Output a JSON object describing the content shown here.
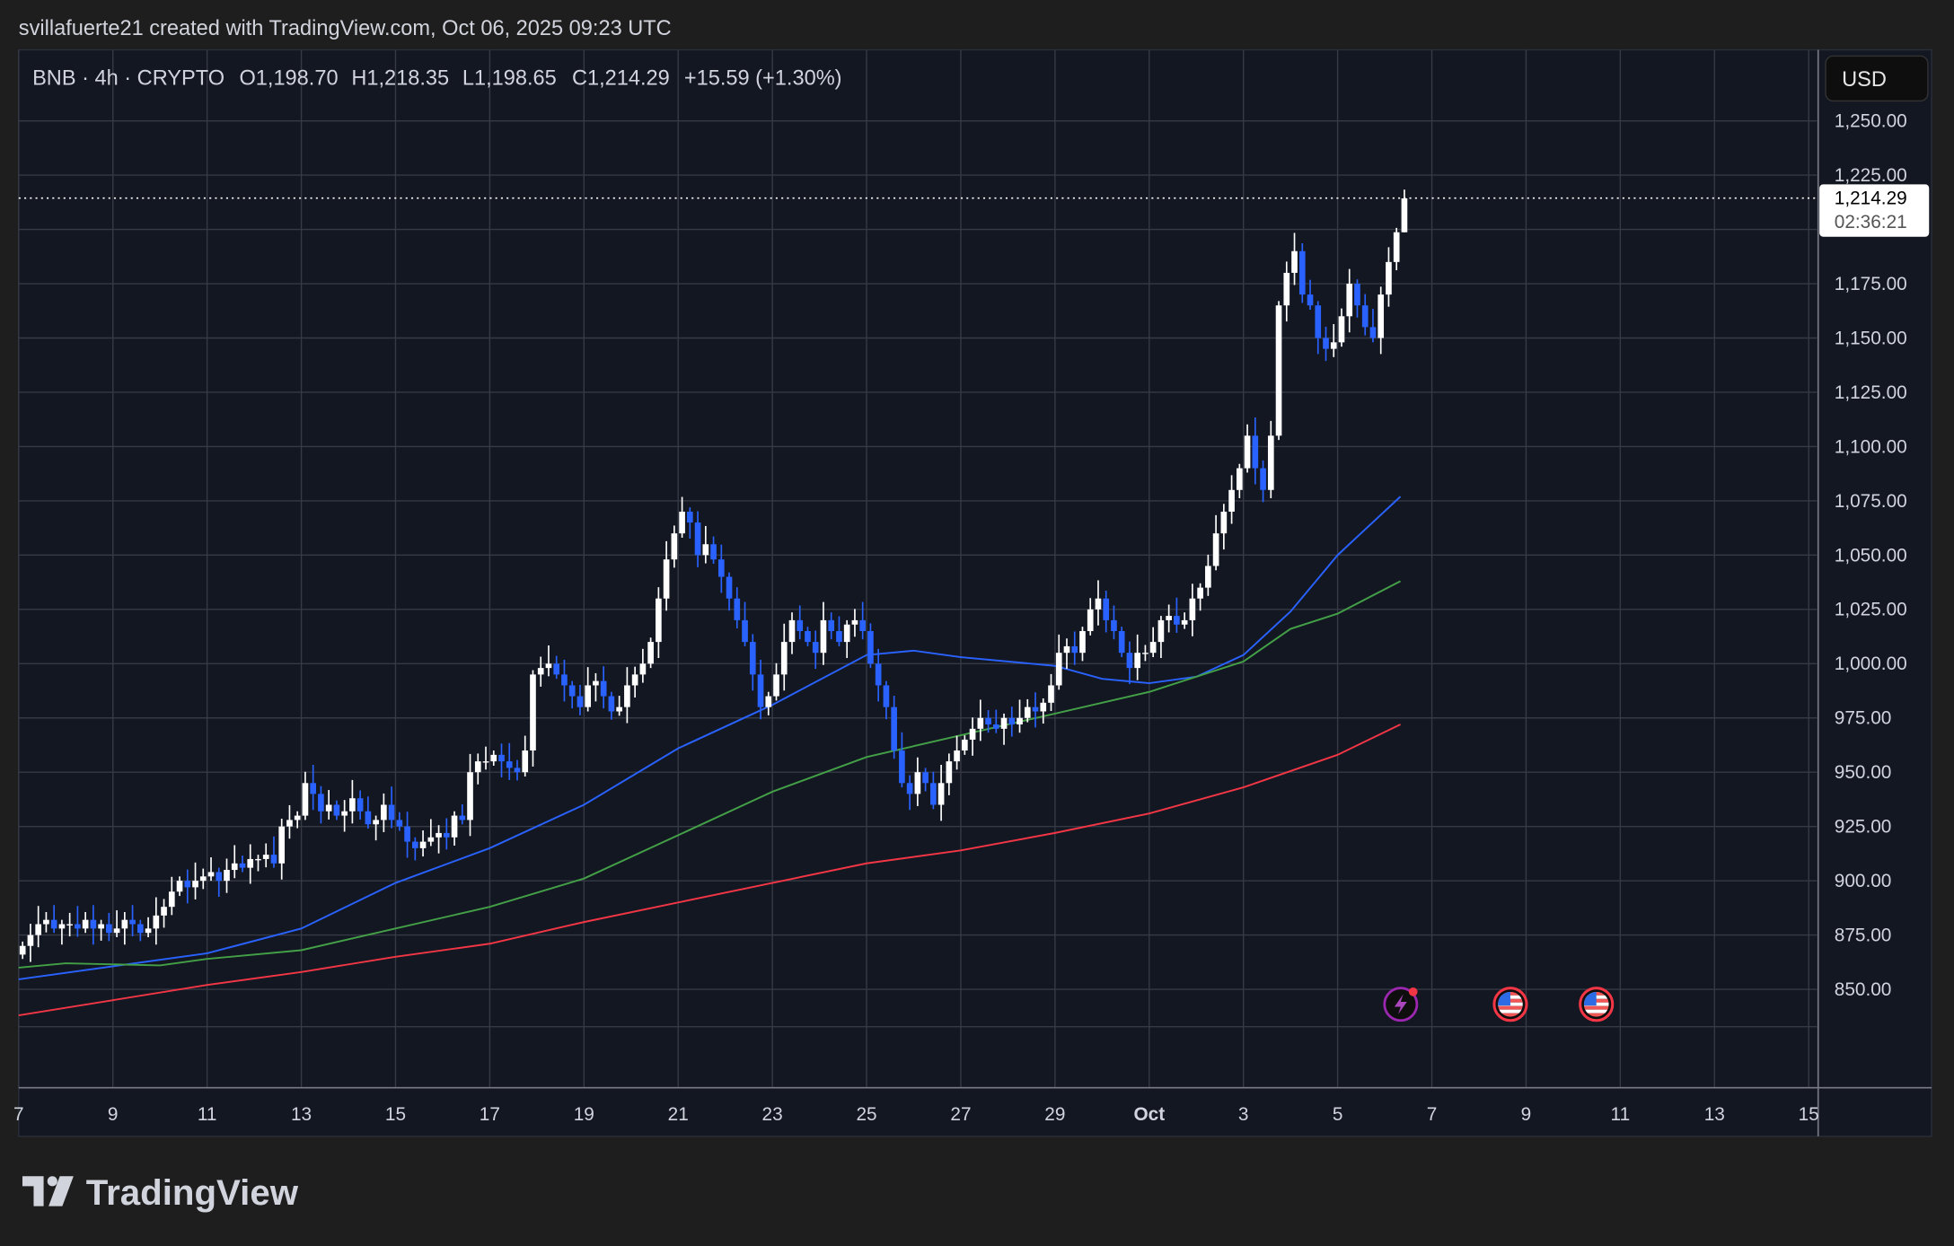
{
  "header": {
    "attribution": "svillafuerte21 created with TradingView.com, Oct 06, 2025 09:23 UTC"
  },
  "legend": {
    "symbol": "BNB · 4h · CRYPTO",
    "open": "O1,198.70",
    "high": "H1,218.35",
    "low": "L1,198.65",
    "close": "C1,214.29",
    "change": "+15.59 (+1.30%)"
  },
  "price_axis": {
    "currency": "USD",
    "ticks": [
      "1,250.00",
      "1,225.00",
      "1,175.00",
      "1,150.00",
      "1,125.00",
      "1,100.00",
      "1,075.00",
      "1,050.00",
      "1,025.00",
      "1,000.00",
      "975.00",
      "950.00",
      "925.00",
      "900.00",
      "875.00",
      "850.00"
    ],
    "last_price": "1,214.29",
    "countdown": "02:36:21"
  },
  "time_axis": {
    "ticks": [
      "7",
      "9",
      "11",
      "13",
      "15",
      "17",
      "19",
      "21",
      "23",
      "25",
      "27",
      "29",
      "Oct",
      "3",
      "5",
      "7",
      "9",
      "11",
      "13",
      "15"
    ]
  },
  "branding": {
    "logo_text": "TradingView"
  },
  "colors": {
    "up": "#ffffff",
    "down": "#2962ff",
    "ma_fast": "#2962ff",
    "ma_mid": "#43a047",
    "ma_slow": "#f23645",
    "background": "#131722"
  },
  "events": [
    {
      "icon": "lightning-icon"
    },
    {
      "icon": "us-flag-icon"
    },
    {
      "icon": "us-flag-icon"
    }
  ],
  "chart_data": {
    "type": "candlestick",
    "symbol": "BNB",
    "interval": "4h",
    "ylim": [
      832,
      1275
    ],
    "first_open": 866,
    "last_candle": {
      "o": 1198.7,
      "h": 1218.35,
      "l": 1198.65,
      "c": 1214.29
    },
    "close": [
      870,
      875,
      880,
      882,
      878,
      880,
      880,
      878,
      882,
      878,
      880,
      876,
      878,
      882,
      880,
      876,
      878,
      884,
      888,
      895,
      900,
      897,
      900,
      902,
      904,
      900,
      905,
      908,
      906,
      910,
      910,
      912,
      908,
      925,
      928,
      930,
      945,
      940,
      932,
      935,
      930,
      932,
      938,
      932,
      926,
      928,
      935,
      928,
      925,
      918,
      915,
      918,
      920,
      922,
      920,
      930,
      928,
      950,
      955,
      955,
      958,
      955,
      952,
      950,
      960,
      995,
      998,
      1000,
      995,
      990,
      985,
      980,
      990,
      992,
      985,
      978,
      980,
      990,
      995,
      1000,
      1010,
      1030,
      1048,
      1060,
      1070,
      1065,
      1050,
      1055,
      1048,
      1040,
      1030,
      1020,
      1010,
      995,
      980,
      985,
      995,
      1010,
      1020,
      1015,
      1010,
      1005,
      1020,
      1015,
      1010,
      1018,
      1020,
      1015,
      1000,
      990,
      980,
      960,
      945,
      940,
      950,
      945,
      935,
      945,
      955,
      960,
      965,
      970,
      975,
      972,
      970,
      975,
      972,
      975,
      980,
      978,
      982,
      990,
      1005,
      1008,
      1005,
      1015,
      1025,
      1030,
      1020,
      1015,
      1005,
      998,
      1005,
      1005,
      1010,
      1020,
      1022,
      1018,
      1020,
      1030,
      1035,
      1045,
      1060,
      1070,
      1080,
      1090,
      1105,
      1090,
      1080,
      1105,
      1165,
      1180,
      1190,
      1170,
      1165,
      1150,
      1145,
      1148,
      1160,
      1175,
      1165,
      1155,
      1150,
      1170,
      1185,
      1198.7,
      1214.29
    ],
    "moving_averages": [
      {
        "color": "#2962ff",
        "points": [
          [
            "2025-09-07",
            854.6
          ],
          [
            "2025-09-11",
            866.6
          ],
          [
            "2025-09-13",
            878
          ],
          [
            "2025-09-15",
            899
          ],
          [
            "2025-09-17",
            915
          ],
          [
            "2025-09-19",
            935
          ],
          [
            "2025-09-21",
            961
          ],
          [
            "2025-09-23",
            981
          ],
          [
            "2025-09-25",
            1004
          ],
          [
            "2025-09-26",
            1006
          ],
          [
            "2025-09-27",
            1003
          ],
          [
            "2025-09-29",
            999
          ],
          [
            "2025-09-30",
            993
          ],
          [
            "2025-10-01",
            991
          ],
          [
            "2025-10-02",
            994
          ],
          [
            "2025-10-03",
            1004
          ],
          [
            "2025-10-04",
            1024
          ],
          [
            "2025-10-05",
            1050
          ],
          [
            "2025-10-06T08:00",
            1077
          ]
        ]
      },
      {
        "color": "#43a047",
        "points": [
          [
            "2025-09-07",
            860
          ],
          [
            "2025-09-08",
            862
          ],
          [
            "2025-09-10",
            861
          ],
          [
            "2025-09-11",
            864
          ],
          [
            "2025-09-13",
            868
          ],
          [
            "2025-09-15",
            878
          ],
          [
            "2025-09-17",
            888
          ],
          [
            "2025-09-19",
            901
          ],
          [
            "2025-09-21",
            921
          ],
          [
            "2025-09-23",
            941
          ],
          [
            "2025-09-25",
            957
          ],
          [
            "2025-09-27",
            967
          ],
          [
            "2025-09-29",
            977
          ],
          [
            "2025-10-01",
            987
          ],
          [
            "2025-10-03",
            1001
          ],
          [
            "2025-10-04",
            1016
          ],
          [
            "2025-10-05",
            1023
          ],
          [
            "2025-10-06T08:00",
            1038
          ]
        ]
      },
      {
        "color": "#f23645",
        "points": [
          [
            "2025-09-07",
            838
          ],
          [
            "2025-09-09",
            845
          ],
          [
            "2025-09-11",
            852
          ],
          [
            "2025-09-13",
            858
          ],
          [
            "2025-09-15",
            865
          ],
          [
            "2025-09-17",
            871
          ],
          [
            "2025-09-19",
            881
          ],
          [
            "2025-09-21",
            890
          ],
          [
            "2025-09-23",
            899
          ],
          [
            "2025-09-25",
            908
          ],
          [
            "2025-09-27",
            914
          ],
          [
            "2025-09-29",
            922
          ],
          [
            "2025-10-01",
            931
          ],
          [
            "2025-10-03",
            943
          ],
          [
            "2025-10-05",
            958
          ],
          [
            "2025-10-06T08:00",
            972
          ]
        ]
      }
    ]
  }
}
